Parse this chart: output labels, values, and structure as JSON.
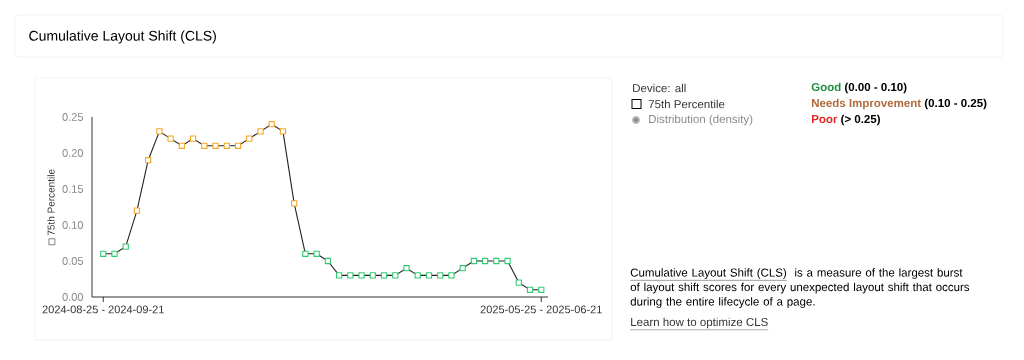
{
  "chart_data": {
    "type": "line",
    "title": "Cumulative Layout Shift (CLS)",
    "ylabel": "75th Percentile",
    "marker": "square",
    "legend": "right",
    "categories": [
      "2024-08-25 - 2024-09-21",
      null,
      null,
      null,
      null,
      null,
      null,
      null,
      null,
      null,
      null,
      null,
      null,
      null,
      null,
      null,
      null,
      null,
      null,
      null,
      null,
      null,
      null,
      null,
      null,
      null,
      null,
      null,
      null,
      null,
      null,
      null,
      null,
      null,
      null,
      null,
      null,
      null,
      null,
      "2025-05-25 - 2025-06-21"
    ],
    "series": [
      {
        "name": "75th Percentile",
        "color": "#222222",
        "values": [
          0.06,
          0.06,
          0.07,
          0.12,
          0.19,
          0.23,
          0.22,
          0.21,
          0.22,
          0.21,
          0.21,
          0.21,
          0.21,
          0.22,
          0.23,
          0.24,
          0.23,
          0.13,
          0.06,
          0.06,
          0.05,
          0.03,
          0.03,
          0.03,
          0.03,
          0.03,
          0.03,
          0.04,
          0.03,
          0.03,
          0.03,
          0.03,
          0.04,
          0.05,
          0.05,
          0.05,
          0.05,
          0.02,
          0.01,
          0.01
        ],
        "colors": [
          "#2ecc71",
          "#2ecc71",
          "#2ecc71",
          "#f5a623",
          "#f5a623",
          "#f5a623",
          "#f5a623",
          "#f5a623",
          "#f5a623",
          "#f5a623",
          "#f5a623",
          "#f5a623",
          "#f5a623",
          "#f5a623",
          "#f5a623",
          "#f5a623",
          "#f5a623",
          "#f5a623",
          "#2ecc71",
          "#2ecc71",
          "#2ecc71",
          "#2ecc71",
          "#2ecc71",
          "#2ecc71",
          "#2ecc71",
          "#2ecc71",
          "#2ecc71",
          "#2ecc71",
          "#2ecc71",
          "#2ecc71",
          "#2ecc71",
          "#2ecc71",
          "#2ecc71",
          "#2ecc71",
          "#2ecc71",
          "#2ecc71",
          "#2ecc71",
          "#2ecc71",
          "#2ecc71",
          "#2ecc71"
        ]
      }
    ],
    "ylim": [
      0,
      0.25
    ],
    "yticks": [
      {
        "value": 0,
        "label": "0.00"
      },
      0.05,
      {
        "value": 0.1,
        "label": "0.10"
      },
      0.15,
      {
        "value": 0.2,
        "label": "0.20"
      },
      0.25
    ],
    "annotations": [
      "Device: all",
      "Distribution (density)",
      "Good",
      "(0.00 - 0.10)",
      "Needs Improvement",
      "(0.10 - 0.25)",
      "Poor",
      "(> 0.25)",
      "Cumulative Layout Shift (CLS)",
      "is a measure of the largest burst of layout shift scores for every unexpected layout shift that occurs during the entire lifecycle of a page.",
      "Learn how to optimize CLS"
    ]
  }
}
